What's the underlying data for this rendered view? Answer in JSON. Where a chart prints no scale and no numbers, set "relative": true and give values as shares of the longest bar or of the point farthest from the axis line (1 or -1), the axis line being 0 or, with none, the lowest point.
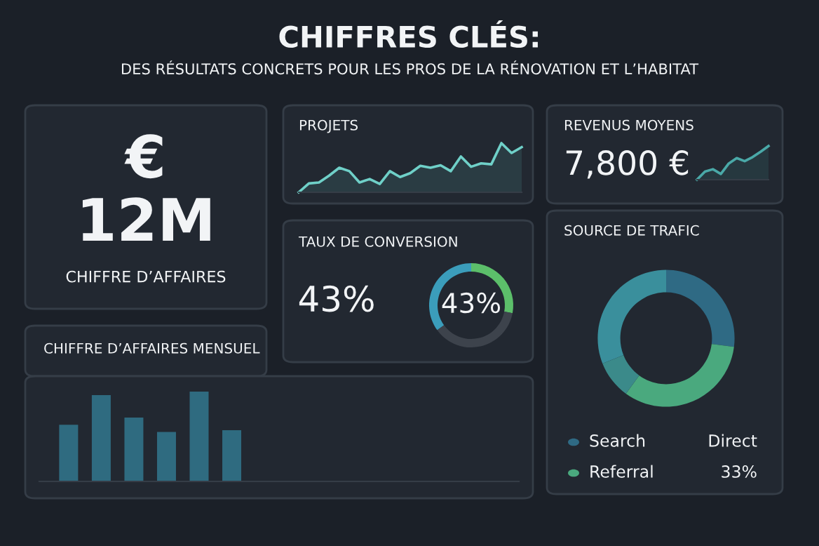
{
  "chart_data": [
    {
      "type": "other",
      "title": "CHIFFRES CLÉS:",
      "subtitle": "DES RÉSULTATS CONCRETS POUR LES PROS DE LA RÉNOVATION ET L’HABITAT"
    },
    {
      "type": "other",
      "title": "CHIFFRE D’AFFAIRES",
      "annotations": [
        "€",
        "12M"
      ]
    },
    {
      "type": "area",
      "title": "PROJETS",
      "relative": true,
      "categories": [
        null,
        null,
        null,
        null,
        null,
        null,
        null,
        null,
        null,
        null,
        null,
        null,
        null,
        null,
        null,
        null,
        null,
        null,
        null,
        null,
        null,
        null,
        null
      ],
      "series": [
        {
          "color": "#6fd0c8",
          "values": [
            0,
            0.18,
            0.2,
            0.34,
            0.5,
            0.43,
            0.2,
            0.27,
            0.17,
            0.43,
            0.31,
            0.39,
            0.54,
            0.5,
            0.55,
            0.43,
            0.73,
            0.52,
            0.59,
            0.57,
            1,
            0.8,
            0.92
          ]
        }
      ]
    },
    {
      "type": "area",
      "title": "REVENUS MOYENS",
      "relative": true,
      "annotations": [
        "7,800 €"
      ],
      "categories": [
        null,
        null,
        null,
        null,
        null,
        null,
        null,
        null,
        null,
        null
      ],
      "series": [
        {
          "color": "#4aa9a8",
          "values": [
            0,
            0.24,
            0.31,
            0.17,
            0.48,
            0.64,
            0.55,
            0.67,
            0.83,
            1
          ]
        }
      ]
    },
    {
      "type": "donut",
      "title": "TAUX DE CONVERSION",
      "categories": [
        null,
        null,
        null
      ],
      "values": [
        28,
        37,
        35
      ],
      "colors": [
        "#5cbf6a",
        "#3d434c",
        "#3b9dbb"
      ],
      "annotations": [
        "43%",
        "43%"
      ]
    },
    {
      "type": "donut",
      "title": "SOURCE DE TRAFIC",
      "categories": [
        "Search",
        "Referral",
        null,
        null
      ],
      "values": [
        27,
        33,
        9,
        31
      ],
      "colors": [
        "#2f6a84",
        "#4aa97e",
        "#3b8a8a",
        "#3a8f9c"
      ],
      "legend": "bottom",
      "annotations": [
        "Direct",
        "33%"
      ]
    },
    {
      "type": "bar",
      "title": "CHIFFRE D’AFFAIRES MENSUEL",
      "relative": true,
      "categories": [
        null,
        null,
        null,
        null,
        null,
        null
      ],
      "values": [
        0.63,
        0.96,
        0.71,
        0.55,
        1,
        0.57
      ],
      "color": "#2f6b80"
    }
  ]
}
